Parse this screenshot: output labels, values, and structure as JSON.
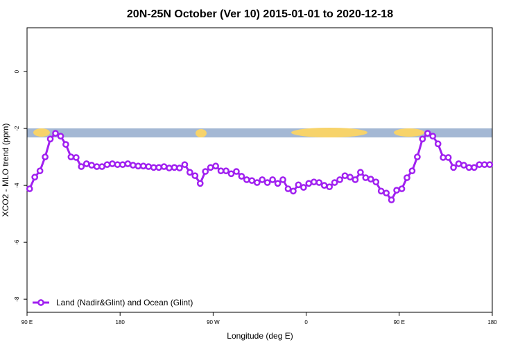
{
  "chart_data": {
    "type": "line",
    "title": "20N-25N October (Ver 10)   2015-01-01 to 2020-12-18",
    "xlabel": "Longitude (deg E)",
    "ylabel": "XCO2 - MLO trend (ppm)",
    "xlim": [
      90,
      540
    ],
    "ylim": [
      -8.46,
      1.54
    ],
    "xticks": [
      {
        "value": 90,
        "label": "90 E"
      },
      {
        "value": 180,
        "label": "180"
      },
      {
        "value": 270,
        "label": "90 W"
      },
      {
        "value": 360,
        "label": "0"
      },
      {
        "value": 450,
        "label": "90 E"
      },
      {
        "value": 540,
        "label": "180"
      }
    ],
    "yticks": [
      0,
      -2,
      -4,
      -6,
      -8
    ],
    "legend": "bottom-left",
    "x": [
      92.5,
      97.5,
      102.5,
      107.5,
      112.5,
      117.5,
      122.5,
      127.5,
      132.5,
      137.5,
      142.5,
      147.5,
      152.5,
      157.5,
      162.5,
      167.5,
      172.5,
      177.5,
      182.5,
      187.5,
      192.5,
      197.5,
      202.5,
      207.5,
      212.5,
      217.5,
      222.5,
      227.5,
      232.5,
      237.5,
      242.5,
      247.5,
      252.5,
      257.5,
      262.5,
      267.5,
      272.5,
      277.5,
      282.5,
      287.5,
      292.5,
      297.5,
      302.5,
      307.5,
      312.5,
      317.5,
      322.5,
      327.5,
      332.5,
      337.5,
      342.5,
      347.5,
      352.5,
      357.5,
      362.5,
      367.5,
      372.5,
      377.5,
      382.5,
      387.5,
      392.5,
      397.5,
      402.5,
      407.5,
      412.5,
      417.5,
      422.5,
      427.5,
      432.5,
      437.5,
      442.5,
      447.5,
      452.5,
      457.5,
      462.5,
      467.5,
      472.5,
      477.5,
      482.5,
      487.5,
      492.5,
      497.5,
      502.5,
      507.5,
      512.5,
      517.5,
      522.5,
      527.5,
      532.5,
      537.5
    ],
    "series": [
      {
        "name": "Land (Nadir&Glint) and Ocean (Glint)",
        "color": "#a020f0",
        "values": [
          -4.12,
          -3.71,
          -3.49,
          -3.0,
          -2.37,
          -2.17,
          -2.27,
          -2.56,
          -3.0,
          -3.02,
          -3.34,
          -3.24,
          -3.29,
          -3.34,
          -3.34,
          -3.27,
          -3.24,
          -3.27,
          -3.27,
          -3.24,
          -3.29,
          -3.32,
          -3.32,
          -3.34,
          -3.37,
          -3.37,
          -3.34,
          -3.39,
          -3.37,
          -3.39,
          -3.27,
          -3.54,
          -3.66,
          -3.93,
          -3.51,
          -3.37,
          -3.32,
          -3.49,
          -3.49,
          -3.59,
          -3.51,
          -3.68,
          -3.8,
          -3.83,
          -3.9,
          -3.8,
          -3.9,
          -3.8,
          -3.93,
          -3.8,
          -4.12,
          -4.2,
          -3.98,
          -4.07,
          -3.93,
          -3.88,
          -3.9,
          -4.0,
          -4.05,
          -3.9,
          -3.8,
          -3.66,
          -3.71,
          -3.8,
          -3.54,
          -3.73,
          -3.78,
          -3.88,
          -4.2,
          -4.27,
          -4.51,
          -4.17,
          -4.12,
          -3.73,
          -3.49,
          -3.0,
          -2.37,
          -2.17,
          -2.27,
          -2.54,
          -3.02,
          -3.02,
          -3.37,
          -3.24,
          -3.29,
          -3.37,
          -3.37,
          -3.27,
          -3.27,
          -3.27
        ]
      }
    ]
  }
}
